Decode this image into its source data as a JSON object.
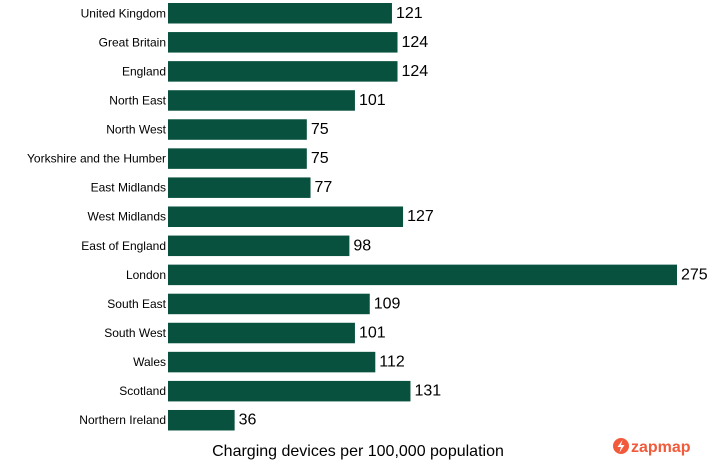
{
  "chart_data": {
    "type": "bar",
    "orientation": "horizontal",
    "categories": [
      "United Kingdom",
      "Great Britain",
      "England",
      "North East",
      "North West",
      "Yorkshire and the Humber",
      "East Midlands",
      "West Midlands",
      "East of England",
      "London",
      "South East",
      "South West",
      "Wales",
      "Scotland",
      "Northern Ireland"
    ],
    "values": [
      121,
      124,
      124,
      101,
      75,
      75,
      77,
      127,
      98,
      275,
      109,
      101,
      112,
      131,
      36
    ],
    "xlabel": "Charging devices per 100,000 population",
    "xlim": [
      0,
      275
    ],
    "grid": false,
    "legend": "none",
    "colors": {
      "bar": "#08513e"
    }
  },
  "brand": {
    "name": "zapmap",
    "icon": "zapmap-logo-icon",
    "color": "#f15a3b"
  }
}
